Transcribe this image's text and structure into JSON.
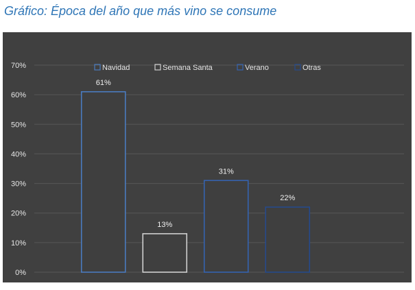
{
  "title": "Gráfico: Época del año que más vino se consume",
  "chart_data": {
    "type": "bar",
    "title": "",
    "xlabel": "",
    "ylabel": "",
    "categories": [
      "Navidad",
      "Semana Santa",
      "Verano",
      "Otras"
    ],
    "values": [
      61,
      13,
      31,
      22
    ],
    "data_labels": [
      "61%",
      "13%",
      "31%",
      "22%"
    ],
    "ylim": [
      0,
      70
    ],
    "y_ticks": [
      0,
      10,
      20,
      30,
      40,
      50,
      60,
      70
    ],
    "y_tick_labels": [
      "0%",
      "10%",
      "20%",
      "30%",
      "40%",
      "50%",
      "60%",
      "70%"
    ],
    "grid": true,
    "legend_position": "top",
    "legend": [
      "Navidad",
      "Semana Santa",
      "Verano",
      "Otras"
    ],
    "colors": {
      "background": "#404040",
      "bar_fill": "#3f3f3f",
      "gridline": "#575757",
      "series": [
        "#4a7bbf",
        "#d0d0d0",
        "#3563b0",
        "#264a8c"
      ]
    }
  }
}
